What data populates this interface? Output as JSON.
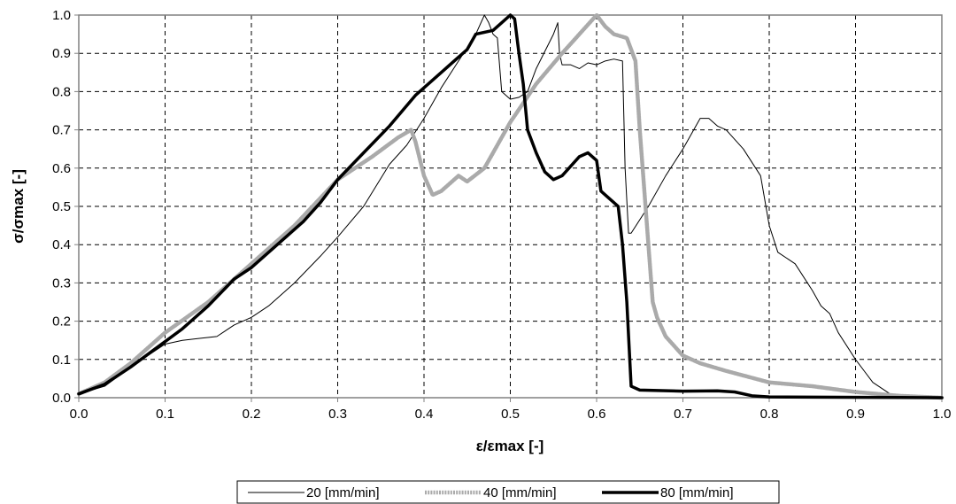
{
  "chart_data": {
    "type": "line",
    "title": "",
    "xlabel": "ε/εmax [-]",
    "ylabel": "σ/σmax [-]",
    "xlim": [
      0,
      1
    ],
    "ylim": [
      0,
      1
    ],
    "x_ticks": [
      "0.0",
      "0.1",
      "0.2",
      "0.3",
      "0.4",
      "0.5",
      "0.6",
      "0.7",
      "0.8",
      "0.9",
      "1.0"
    ],
    "y_ticks": [
      "0.0",
      "0.1",
      "0.2",
      "0.3",
      "0.4",
      "0.5",
      "0.6",
      "0.7",
      "0.8",
      "0.9",
      "1.0"
    ],
    "grid": true,
    "legend_position": "bottom",
    "series": [
      {
        "name": "20 [mm/min]",
        "style": "thin",
        "color": "#000000",
        "points": [
          [
            0,
            0.01
          ],
          [
            0.03,
            0.03
          ],
          [
            0.06,
            0.08
          ],
          [
            0.08,
            0.11
          ],
          [
            0.1,
            0.14
          ],
          [
            0.12,
            0.15
          ],
          [
            0.14,
            0.155
          ],
          [
            0.16,
            0.16
          ],
          [
            0.18,
            0.19
          ],
          [
            0.2,
            0.21
          ],
          [
            0.22,
            0.24
          ],
          [
            0.25,
            0.3
          ],
          [
            0.28,
            0.37
          ],
          [
            0.3,
            0.42
          ],
          [
            0.33,
            0.5
          ],
          [
            0.36,
            0.61
          ],
          [
            0.38,
            0.66
          ],
          [
            0.4,
            0.73
          ],
          [
            0.42,
            0.81
          ],
          [
            0.44,
            0.88
          ],
          [
            0.46,
            0.95
          ],
          [
            0.47,
            1.0
          ],
          [
            0.475,
            0.98
          ],
          [
            0.48,
            0.95
          ],
          [
            0.485,
            0.94
          ],
          [
            0.49,
            0.8
          ],
          [
            0.5,
            0.78
          ],
          [
            0.51,
            0.785
          ],
          [
            0.52,
            0.8
          ],
          [
            0.53,
            0.86
          ],
          [
            0.55,
            0.95
          ],
          [
            0.555,
            0.98
          ],
          [
            0.557,
            0.9
          ],
          [
            0.56,
            0.87
          ],
          [
            0.57,
            0.87
          ],
          [
            0.58,
            0.86
          ],
          [
            0.59,
            0.875
          ],
          [
            0.6,
            0.87
          ],
          [
            0.61,
            0.88
          ],
          [
            0.62,
            0.885
          ],
          [
            0.63,
            0.88
          ],
          [
            0.633,
            0.6
          ],
          [
            0.637,
            0.43
          ],
          [
            0.64,
            0.43
          ],
          [
            0.66,
            0.5
          ],
          [
            0.68,
            0.58
          ],
          [
            0.7,
            0.65
          ],
          [
            0.72,
            0.73
          ],
          [
            0.73,
            0.73
          ],
          [
            0.74,
            0.71
          ],
          [
            0.75,
            0.7
          ],
          [
            0.77,
            0.65
          ],
          [
            0.79,
            0.58
          ],
          [
            0.8,
            0.45
          ],
          [
            0.81,
            0.38
          ],
          [
            0.83,
            0.35
          ],
          [
            0.85,
            0.28
          ],
          [
            0.86,
            0.24
          ],
          [
            0.87,
            0.22
          ],
          [
            0.88,
            0.17
          ],
          [
            0.9,
            0.1
          ],
          [
            0.91,
            0.07
          ],
          [
            0.92,
            0.04
          ],
          [
            0.94,
            0.01
          ],
          [
            0.96,
            0.005
          ],
          [
            1.0,
            0.0
          ]
        ]
      },
      {
        "name": "40 [mm/min]",
        "style": "thick-gray",
        "color": "#aaaaaa",
        "points": [
          [
            0,
            0.01
          ],
          [
            0.03,
            0.04
          ],
          [
            0.06,
            0.09
          ],
          [
            0.1,
            0.17
          ],
          [
            0.15,
            0.25
          ],
          [
            0.2,
            0.35
          ],
          [
            0.25,
            0.45
          ],
          [
            0.3,
            0.57
          ],
          [
            0.34,
            0.63
          ],
          [
            0.37,
            0.68
          ],
          [
            0.385,
            0.7
          ],
          [
            0.39,
            0.67
          ],
          [
            0.4,
            0.58
          ],
          [
            0.41,
            0.53
          ],
          [
            0.42,
            0.54
          ],
          [
            0.44,
            0.58
          ],
          [
            0.45,
            0.565
          ],
          [
            0.47,
            0.6
          ],
          [
            0.5,
            0.72
          ],
          [
            0.53,
            0.82
          ],
          [
            0.56,
            0.9
          ],
          [
            0.58,
            0.95
          ],
          [
            0.6,
            1.0
          ],
          [
            0.61,
            0.97
          ],
          [
            0.62,
            0.95
          ],
          [
            0.635,
            0.94
          ],
          [
            0.645,
            0.88
          ],
          [
            0.65,
            0.7
          ],
          [
            0.655,
            0.55
          ],
          [
            0.66,
            0.4
          ],
          [
            0.665,
            0.25
          ],
          [
            0.67,
            0.21
          ],
          [
            0.68,
            0.16
          ],
          [
            0.7,
            0.11
          ],
          [
            0.72,
            0.09
          ],
          [
            0.75,
            0.07
          ],
          [
            0.8,
            0.04
          ],
          [
            0.85,
            0.03
          ],
          [
            0.9,
            0.015
          ],
          [
            0.95,
            0.005
          ],
          [
            1.0,
            0.0
          ]
        ]
      },
      {
        "name": "80 [mm/min]",
        "style": "thick-black",
        "color": "#000000",
        "points": [
          [
            0,
            0.01
          ],
          [
            0.03,
            0.035
          ],
          [
            0.06,
            0.08
          ],
          [
            0.09,
            0.13
          ],
          [
            0.12,
            0.18
          ],
          [
            0.15,
            0.24
          ],
          [
            0.18,
            0.31
          ],
          [
            0.2,
            0.34
          ],
          [
            0.23,
            0.4
          ],
          [
            0.26,
            0.46
          ],
          [
            0.28,
            0.51
          ],
          [
            0.3,
            0.57
          ],
          [
            0.33,
            0.64
          ],
          [
            0.36,
            0.71
          ],
          [
            0.39,
            0.79
          ],
          [
            0.42,
            0.85
          ],
          [
            0.45,
            0.91
          ],
          [
            0.46,
            0.95
          ],
          [
            0.47,
            0.955
          ],
          [
            0.48,
            0.96
          ],
          [
            0.49,
            0.98
          ],
          [
            0.5,
            1.0
          ],
          [
            0.505,
            0.99
          ],
          [
            0.51,
            0.9
          ],
          [
            0.515,
            0.82
          ],
          [
            0.52,
            0.7
          ],
          [
            0.53,
            0.64
          ],
          [
            0.54,
            0.59
          ],
          [
            0.55,
            0.57
          ],
          [
            0.56,
            0.58
          ],
          [
            0.58,
            0.63
          ],
          [
            0.59,
            0.64
          ],
          [
            0.6,
            0.62
          ],
          [
            0.605,
            0.54
          ],
          [
            0.61,
            0.53
          ],
          [
            0.62,
            0.51
          ],
          [
            0.625,
            0.5
          ],
          [
            0.63,
            0.4
          ],
          [
            0.635,
            0.25
          ],
          [
            0.64,
            0.03
          ],
          [
            0.65,
            0.02
          ],
          [
            0.7,
            0.017
          ],
          [
            0.74,
            0.018
          ],
          [
            0.76,
            0.015
          ],
          [
            0.78,
            0.005
          ],
          [
            0.8,
            0.002
          ],
          [
            1.0,
            0.0
          ]
        ]
      }
    ]
  }
}
